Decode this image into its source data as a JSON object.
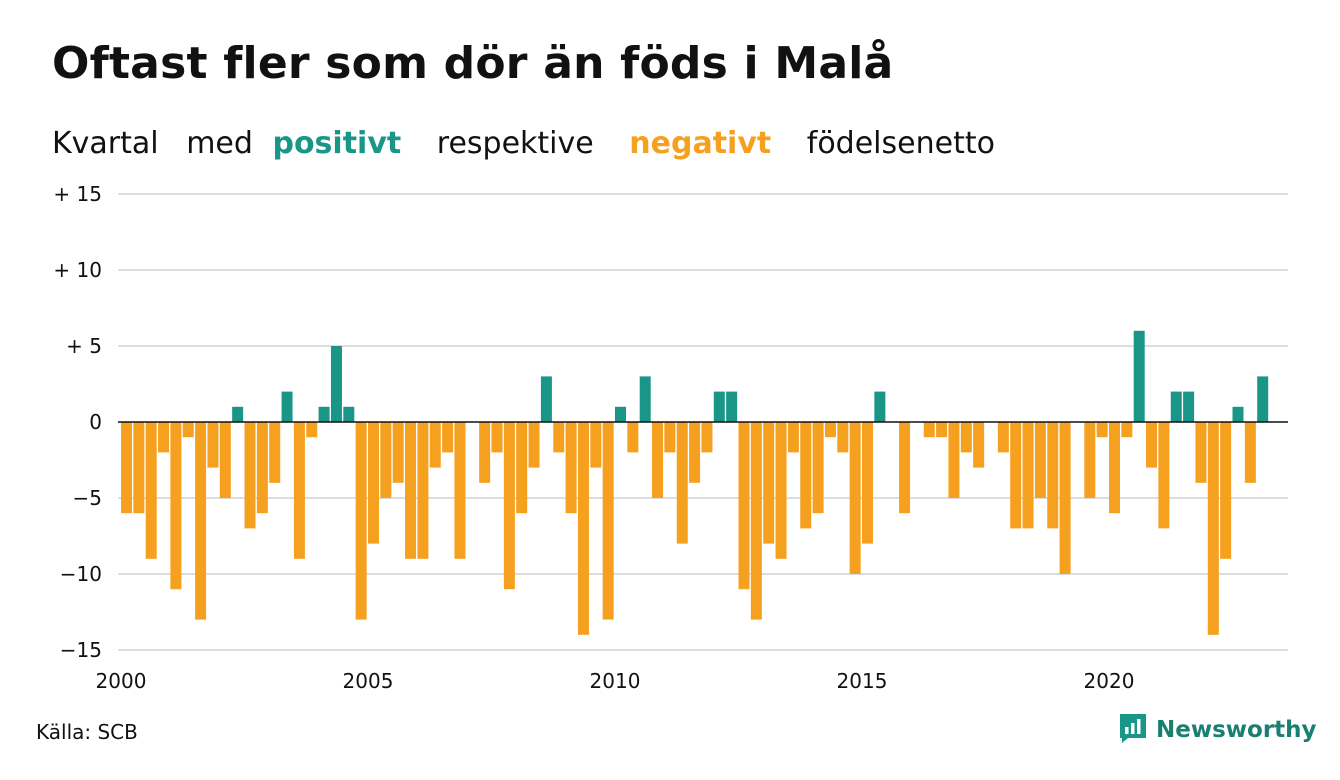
{
  "title": "Oftast fler som dör än föds i Malå",
  "subtitle": {
    "part1": "Kvartal",
    "part2": "med",
    "positive_word": "positivt",
    "part3": "respektive",
    "negative_word": "negativt",
    "part4": "födelsenetto"
  },
  "source": "Källa: SCB",
  "brand": {
    "name": "Newsworthy",
    "icon": "bar-chart-logo-icon"
  },
  "colors": {
    "positive": "#1a9688",
    "negative": "#f5a01e",
    "grid": "#dddddd",
    "zero_line": "#111111"
  },
  "chart_data": {
    "type": "bar",
    "x_unit": "quarter",
    "x_start": "2000 Q1",
    "x_ticks": [
      {
        "label": "2000",
        "index": 0
      },
      {
        "label": "2005",
        "index": 20
      },
      {
        "label": "2010",
        "index": 40
      },
      {
        "label": "2015",
        "index": 60
      },
      {
        "label": "2020",
        "index": 80
      }
    ],
    "y_ticks": [
      {
        "label": "+ 15",
        "value": 15
      },
      {
        "label": "+ 10",
        "value": 10
      },
      {
        "label": "+  5",
        "value": 5
      },
      {
        "label": "0",
        "value": 0
      },
      {
        "label": "−5",
        "value": -5
      },
      {
        "label": "−10",
        "value": -10
      },
      {
        "label": "−15",
        "value": -15
      }
    ],
    "ylim": [
      -15,
      15
    ],
    "grid": true,
    "values": [
      -6,
      -6,
      -9,
      -2,
      -11,
      -1,
      -13,
      -3,
      -5,
      1,
      -7,
      -6,
      -4,
      2,
      -9,
      -1,
      1,
      5,
      1,
      -13,
      -8,
      -5,
      -4,
      -9,
      -9,
      -3,
      -2,
      -9,
      0,
      -4,
      -2,
      -11,
      -6,
      -3,
      3,
      -2,
      -6,
      -14,
      -3,
      -13,
      1,
      -2,
      3,
      -5,
      -2,
      -8,
      -4,
      -2,
      2,
      2,
      -11,
      -13,
      -8,
      -9,
      -2,
      -7,
      -6,
      -1,
      -2,
      -10,
      -8,
      2,
      0,
      -6,
      0,
      -1,
      -1,
      -5,
      -2,
      -3,
      0,
      -2,
      -7,
      -7,
      -5,
      -7,
      -10,
      0,
      -5,
      -1,
      -6,
      -1,
      6,
      -3,
      -7,
      2,
      2,
      -4,
      -14,
      -9,
      1,
      -4,
      3
    ]
  }
}
